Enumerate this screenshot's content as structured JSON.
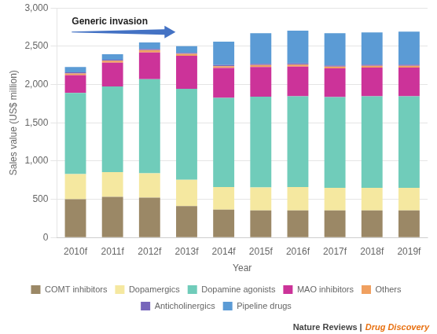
{
  "chart_data": {
    "type": "bar",
    "stacked": true,
    "xlabel": "Year",
    "ylabel": "Sales value (US$ million)",
    "categories": [
      "2010f",
      "2011f",
      "2012f",
      "2013f",
      "2014f",
      "2015f",
      "2016f",
      "2017f",
      "2018f",
      "2019f"
    ],
    "series": [
      {
        "name": "COMT inhibitors",
        "color": "#9B8866",
        "values": [
          500,
          530,
          520,
          410,
          365,
          355,
          355,
          355,
          355,
          355
        ]
      },
      {
        "name": "Dopamergics",
        "color": "#F5E8A0",
        "values": [
          330,
          325,
          320,
          345,
          295,
          300,
          305,
          295,
          295,
          295
        ]
      },
      {
        "name": "Dopamine agonists",
        "color": "#70CCBA",
        "values": [
          1060,
          1120,
          1230,
          1190,
          1165,
          1185,
          1185,
          1185,
          1195,
          1195
        ]
      },
      {
        "name": "MAO inhibitors",
        "color": "#CC3399",
        "values": [
          230,
          310,
          350,
          430,
          390,
          390,
          390,
          375,
          375,
          375
        ]
      },
      {
        "name": "Others",
        "color": "#F0A060",
        "values": [
          25,
          25,
          30,
          25,
          25,
          25,
          25,
          25,
          25,
          25
        ]
      },
      {
        "name": "Anticholinergics",
        "color": "#7766BB",
        "values": [
          15,
          15,
          15,
          15,
          15,
          15,
          15,
          15,
          15,
          15
        ]
      },
      {
        "name": "Pipeline drugs",
        "color": "#5B9BD5",
        "values": [
          70,
          70,
          85,
          85,
          305,
          400,
          430,
          420,
          420,
          430
        ]
      }
    ],
    "ylim": [
      0,
      3000
    ],
    "yticks": [
      0,
      500,
      {
        "value": 1000,
        "label": "1,000"
      },
      {
        "value": 1500,
        "label": "1,500"
      },
      {
        "value": 2000,
        "label": "2,000"
      },
      {
        "value": 2500,
        "label": "2,500"
      },
      {
        "value": 3000,
        "label": "3,000"
      }
    ],
    "grid": true,
    "legend": "bottom",
    "annotations": [
      {
        "text": "Generic invasion",
        "marker": "arrow",
        "color": "#4472C4"
      },
      {
        "text": "Nature Reviews |",
        "color": "#444444"
      },
      {
        "text": "Drug Discovery",
        "color": "#E87010"
      }
    ]
  }
}
